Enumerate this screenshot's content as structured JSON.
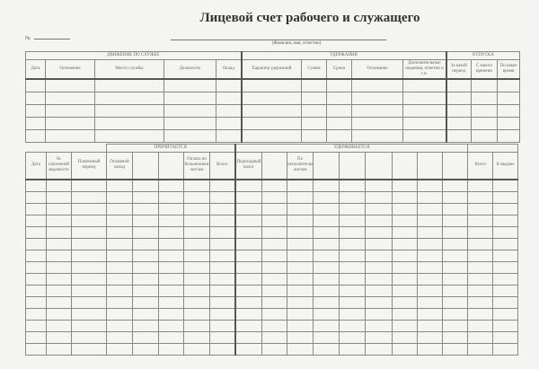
{
  "title": "Лицевой счет рабочего и служащего",
  "number_label": "№",
  "fio_caption": "(Фамилия, имя, отчество)",
  "top_table": {
    "groups": [
      "ДВИЖЕНИЕ ПО СЛУЖБЕ",
      "УДЕРЖАНИЯ",
      "ОТПУСКА"
    ],
    "columns": [
      "Дата",
      "Основание",
      "Место службы",
      "Должность",
      "Оклад",
      "Характер удержаний",
      "Сумма",
      "Сроки",
      "Основание",
      "Дополнительные сведения, отметки и т.п.",
      "За какой период",
      "С какого времени",
      "По какое время"
    ]
  },
  "bottom_table": {
    "groups": [
      "ПРИЧИТАЕТСЯ",
      "УДЕРЖИВАЕТСЯ"
    ],
    "columns": [
      "Дата",
      "№ платежной ведомости",
      "Платежный период",
      "Основной оклад",
      "",
      "",
      "Оплата по больничным листам",
      "Всего",
      "Подоходный налог",
      "",
      "По исполнительным листам",
      "",
      "",
      "",
      "",
      "",
      "",
      "Всего",
      "К выдаче"
    ]
  }
}
